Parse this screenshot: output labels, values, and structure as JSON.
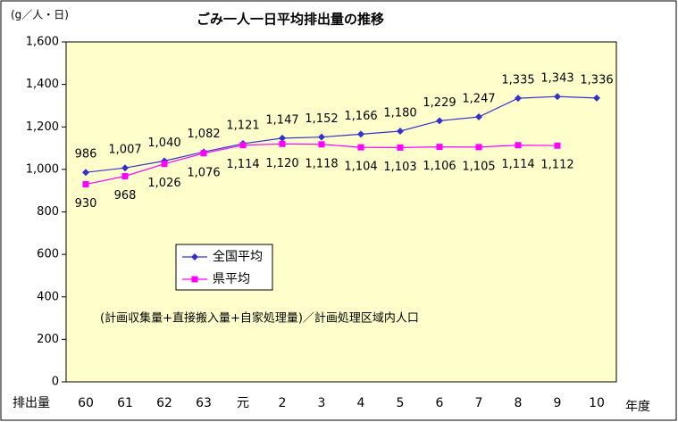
{
  "chart_data": {
    "type": "line",
    "title": "ごみ一人一日平均排出量の推移",
    "y_unit_label": "(g／人・日)",
    "x_label_left": "排出量",
    "x_label_right": "年度",
    "annotation": "(計画収集量+直接搬入量+自家処理量)／計画処理区域内人口",
    "categories": [
      "60",
      "61",
      "62",
      "63",
      "元",
      "2",
      "3",
      "4",
      "5",
      "6",
      "7",
      "8",
      "9",
      "10"
    ],
    "series": [
      {
        "name": "全国平均",
        "color": "#3333cc",
        "marker": "diamond",
        "values": [
          986,
          1007,
          1040,
          1082,
          1121,
          1147,
          1152,
          1166,
          1180,
          1229,
          1247,
          1335,
          1343,
          1336
        ],
        "value_labels": [
          "986",
          "1,007",
          "1,040",
          "1,082",
          "1,121",
          "1,147",
          "1,152",
          "1,166",
          "1,180",
          "1,229",
          "1,247",
          "1,335",
          "1,343",
          "1,336"
        ]
      },
      {
        "name": "県平均",
        "color": "#ff00ff",
        "marker": "square",
        "values": [
          930,
          968,
          1026,
          1076,
          1114,
          1120,
          1118,
          1104,
          1103,
          1106,
          1105,
          1114,
          1112,
          null
        ],
        "value_labels": [
          "930",
          "968",
          "1,026",
          "1,076",
          "1,114",
          "1,120",
          "1,118",
          "1,104",
          "1,103",
          "1,106",
          "1,105",
          "1,114",
          "1,112",
          null
        ]
      }
    ],
    "ylim": [
      0,
      1600
    ],
    "yticks": [
      0,
      200,
      400,
      600,
      800,
      {
        "value": 1000,
        "label": "1,000"
      },
      {
        "value": 1200,
        "label": "1,200"
      },
      {
        "value": 1400,
        "label": "1,400"
      },
      {
        "value": 1600,
        "label": "1,600"
      }
    ],
    "grid": false,
    "legend": "left"
  }
}
